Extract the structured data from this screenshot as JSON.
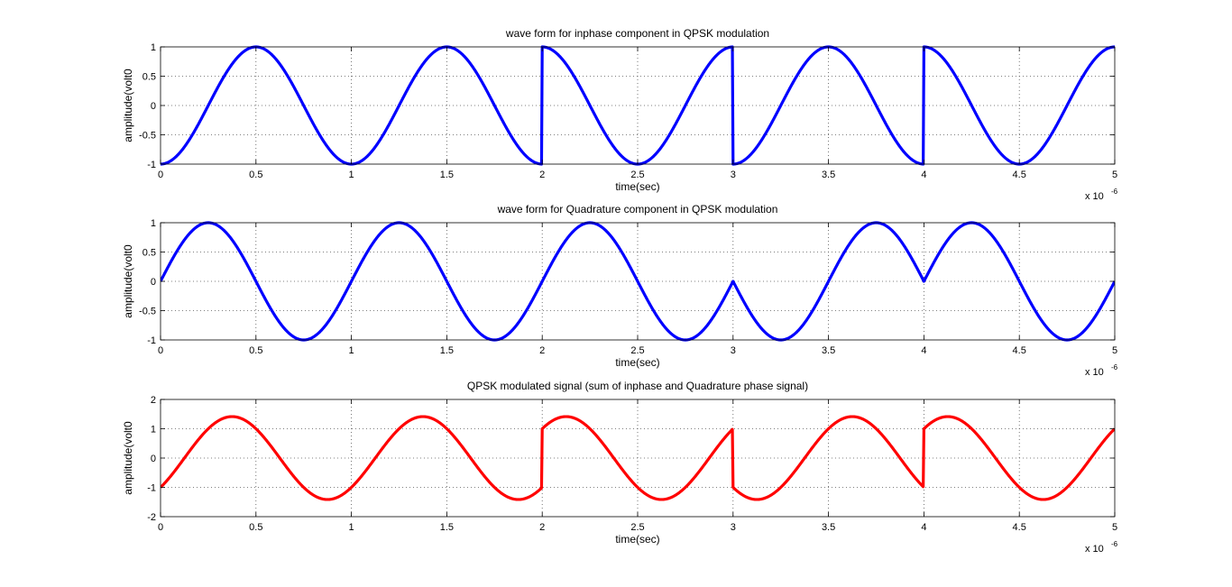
{
  "figure": {
    "background": "#ffffff",
    "axis_color": "#000000",
    "grid_color": "#555555"
  },
  "chart_data": [
    {
      "type": "line",
      "title": "wave form for inphase component in QPSK modulation",
      "xlabel": "time(sec)",
      "ylabel": "amplitude(volt0",
      "x_exponent": "x 10",
      "x_exponent_power": "-6",
      "xlim": [
        0,
        5
      ],
      "ylim": [
        -1,
        1
      ],
      "xticks": [
        0,
        0.5,
        1,
        1.5,
        2,
        2.5,
        3,
        3.5,
        4,
        4.5,
        5
      ],
      "xtick_labels": [
        "0",
        "0.5",
        "1",
        "1.5",
        "2",
        "2.5",
        "3",
        "3.5",
        "4",
        "4.5",
        "5"
      ],
      "yticks": [
        -1,
        -0.5,
        0,
        0.5,
        1
      ],
      "ytick_labels": [
        "-1",
        "-0.5",
        "0",
        "0.5",
        "1"
      ],
      "grid": true,
      "series": [
        {
          "color": "#0000ff",
          "function": "-cos(2*pi*t)",
          "symbol_phases": [
            0,
            0,
            180,
            0,
            180
          ],
          "symbol_period": 1,
          "x": [
            0,
            0.5,
            1,
            1.5,
            2,
            2.5,
            3,
            3.5,
            4,
            4.5,
            5
          ]
        }
      ]
    },
    {
      "type": "line",
      "title": "wave form for Quadrature component in QPSK modulation",
      "xlabel": "time(sec)",
      "ylabel": "amplitude(volt0",
      "x_exponent": "x 10",
      "x_exponent_power": "-6",
      "xlim": [
        0,
        5
      ],
      "ylim": [
        -1,
        1
      ],
      "xticks": [
        0,
        0.5,
        1,
        1.5,
        2,
        2.5,
        3,
        3.5,
        4,
        4.5,
        5
      ],
      "xtick_labels": [
        "0",
        "0.5",
        "1",
        "1.5",
        "2",
        "2.5",
        "3",
        "3.5",
        "4",
        "4.5",
        "5"
      ],
      "yticks": [
        -1,
        -0.5,
        0,
        0.5,
        1
      ],
      "ytick_labels": [
        "-1",
        "-0.5",
        "0",
        "0.5",
        "1"
      ],
      "grid": true,
      "series": [
        {
          "color": "#0000ff",
          "function": "sin(2*pi*t)",
          "symbol_phases": [
            0,
            0,
            0,
            180,
            0
          ],
          "symbol_period": 1,
          "x": [
            0,
            0.5,
            1,
            1.5,
            2,
            2.5,
            3,
            3.5,
            4,
            4.5,
            5
          ]
        }
      ]
    },
    {
      "type": "line",
      "title": "QPSK modulated signal (sum of inphase and Quadrature phase signal)",
      "xlabel": "time(sec)",
      "ylabel": "amplitude(volt0",
      "x_exponent": "x 10",
      "x_exponent_power": "-6",
      "xlim": [
        0,
        5
      ],
      "ylim": [
        -2,
        2
      ],
      "xticks": [
        0,
        0.5,
        1,
        1.5,
        2,
        2.5,
        3,
        3.5,
        4,
        4.5,
        5
      ],
      "xtick_labels": [
        "0",
        "0.5",
        "1",
        "1.5",
        "2",
        "2.5",
        "3",
        "3.5",
        "4",
        "4.5",
        "5"
      ],
      "yticks": [
        -2,
        -1,
        0,
        1,
        2
      ],
      "ytick_labels": [
        "-2",
        "-1",
        "0",
        "1",
        "2"
      ],
      "grid": true,
      "series": [
        {
          "color": "#ff0000",
          "function": "inphase + quadrature",
          "symbol_phases_inphase": [
            0,
            0,
            180,
            0,
            180
          ],
          "symbol_phases_quadrature": [
            0,
            0,
            0,
            180,
            0
          ],
          "symbol_period": 1,
          "x": [
            0,
            0.5,
            1,
            1.5,
            2,
            2.5,
            3,
            3.5,
            4,
            4.5,
            5
          ]
        }
      ]
    }
  ]
}
